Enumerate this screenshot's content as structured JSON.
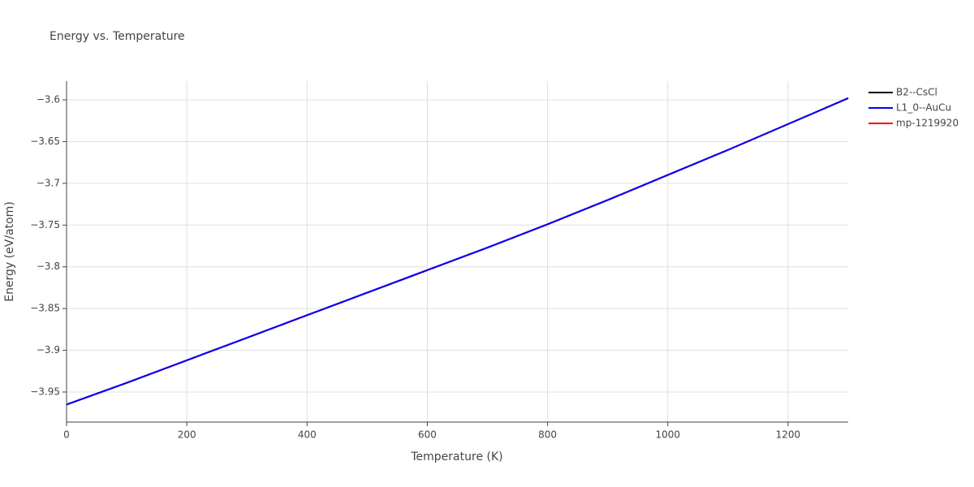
{
  "chart_data": {
    "type": "line",
    "title": "Energy vs. Temperature",
    "x_label": "Temperature (K)",
    "y_label": "Energy (eV/atom)",
    "x": [
      0,
      100,
      200,
      300,
      400,
      500,
      600,
      700,
      800,
      900,
      1000,
      1100,
      1200,
      1300
    ],
    "series": [
      {
        "name": "B2--CsCl",
        "color": "#000000",
        "values": [
          -3.965,
          -3.939,
          -3.912,
          -3.885,
          -3.858,
          -3.831,
          -3.804,
          -3.777,
          -3.749,
          -3.72,
          -3.69,
          -3.66,
          -3.629,
          -3.598
        ]
      },
      {
        "name": "mp-1219920",
        "color": "#ff0000",
        "values": [
          -3.965,
          -3.939,
          -3.912,
          -3.885,
          -3.858,
          -3.831,
          -3.804,
          -3.777,
          -3.749,
          -3.72,
          -3.69,
          -3.66,
          -3.629,
          -3.598
        ]
      },
      {
        "name": "L1_0--AuCu",
        "color": "#0000ff",
        "values": [
          -3.965,
          -3.939,
          -3.912,
          -3.885,
          -3.858,
          -3.831,
          -3.804,
          -3.777,
          -3.749,
          -3.72,
          -3.69,
          -3.66,
          -3.629,
          -3.598
        ]
      }
    ],
    "legend_order": [
      0,
      2,
      1
    ],
    "xlim": [
      0,
      1300
    ],
    "xticks": [
      0,
      200,
      400,
      600,
      800,
      1000,
      1200
    ],
    "ylim": [
      -3.986,
      -3.5776
    ],
    "yticks": [
      {
        "value": -3.95,
        "label": "−3.95"
      },
      {
        "value": -3.9,
        "label": "−3.9"
      },
      {
        "value": -3.85,
        "label": "−3.85"
      },
      {
        "value": -3.8,
        "label": "−3.8"
      },
      {
        "value": -3.75,
        "label": "−3.75"
      },
      {
        "value": -3.7,
        "label": "−3.7"
      },
      {
        "value": -3.65,
        "label": "−3.65"
      },
      {
        "value": -3.6,
        "label": "−3.6"
      }
    ],
    "grid": true,
    "legend": "right"
  }
}
